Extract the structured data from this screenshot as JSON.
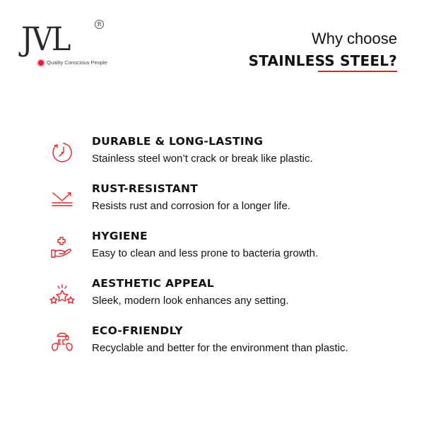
{
  "logo": {
    "letters": "JVL",
    "registered": "R",
    "tagline": "Quality Conscious People"
  },
  "header": {
    "line1": "Why choose",
    "line2": "STAINLESS STEEL?"
  },
  "accent": "#e3222b",
  "features": [
    {
      "icon": "clock-icon",
      "title": "DURABLE & LONG-LASTING",
      "desc": "Stainless steel won’t crack or break like plastic."
    },
    {
      "icon": "rust-resistant-icon",
      "title": "RUST-RESISTANT",
      "desc": "Resists rust and corrosion for a longer life."
    },
    {
      "icon": "hygiene-hand-icon",
      "title": "HYGIENE",
      "desc": "Easy to clean and less prone to bacteria growth."
    },
    {
      "icon": "stars-icon",
      "title": "AESTHETIC APPEAL",
      "desc": "Sleek, modern look enhances any setting."
    },
    {
      "icon": "eco-leaves-icon",
      "title": "ECO-FRIENDLY",
      "desc": "Recyclable and better for the environment than plastic."
    }
  ]
}
